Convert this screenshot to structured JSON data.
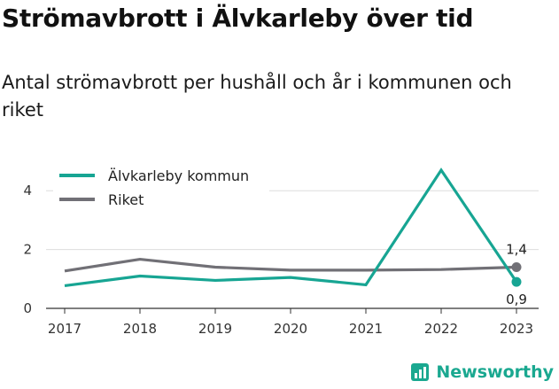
{
  "title": "Strömavbrott i Älvkarleby över tid",
  "subtitle": "Antal strömavbrott per hushåll och år i kommunen och riket",
  "brand": "Newsworthy",
  "colors": {
    "kommun": "#17a593",
    "riket": "#717076",
    "grid": "#dddddd",
    "axis": "#333333",
    "brand": "#1aa890"
  },
  "chart_data": {
    "type": "line",
    "title": "Strömavbrott i Älvkarleby över tid",
    "subtitle": "Antal strömavbrott per hushåll och år i kommunen och riket",
    "x": [
      "2017",
      "2018",
      "2019",
      "2020",
      "2021",
      "2022",
      "2023"
    ],
    "ylim": [
      0,
      5
    ],
    "yticks": [
      0,
      2,
      4
    ],
    "grid": true,
    "legend_position": "top-left",
    "series": [
      {
        "name": "Älvkarleby kommun",
        "color": "#17a593",
        "values": [
          0.77,
          1.1,
          0.95,
          1.05,
          0.8,
          4.7,
          0.9
        ]
      },
      {
        "name": "Riket",
        "color": "#717076",
        "values": [
          1.27,
          1.67,
          1.4,
          1.3,
          1.3,
          1.32,
          1.4
        ]
      }
    ],
    "annotations": [
      {
        "series": "Riket",
        "x": "2023",
        "label": "1,4",
        "placement": "above"
      },
      {
        "series": "Älvkarleby kommun",
        "x": "2023",
        "label": "0,9",
        "placement": "below"
      }
    ]
  }
}
